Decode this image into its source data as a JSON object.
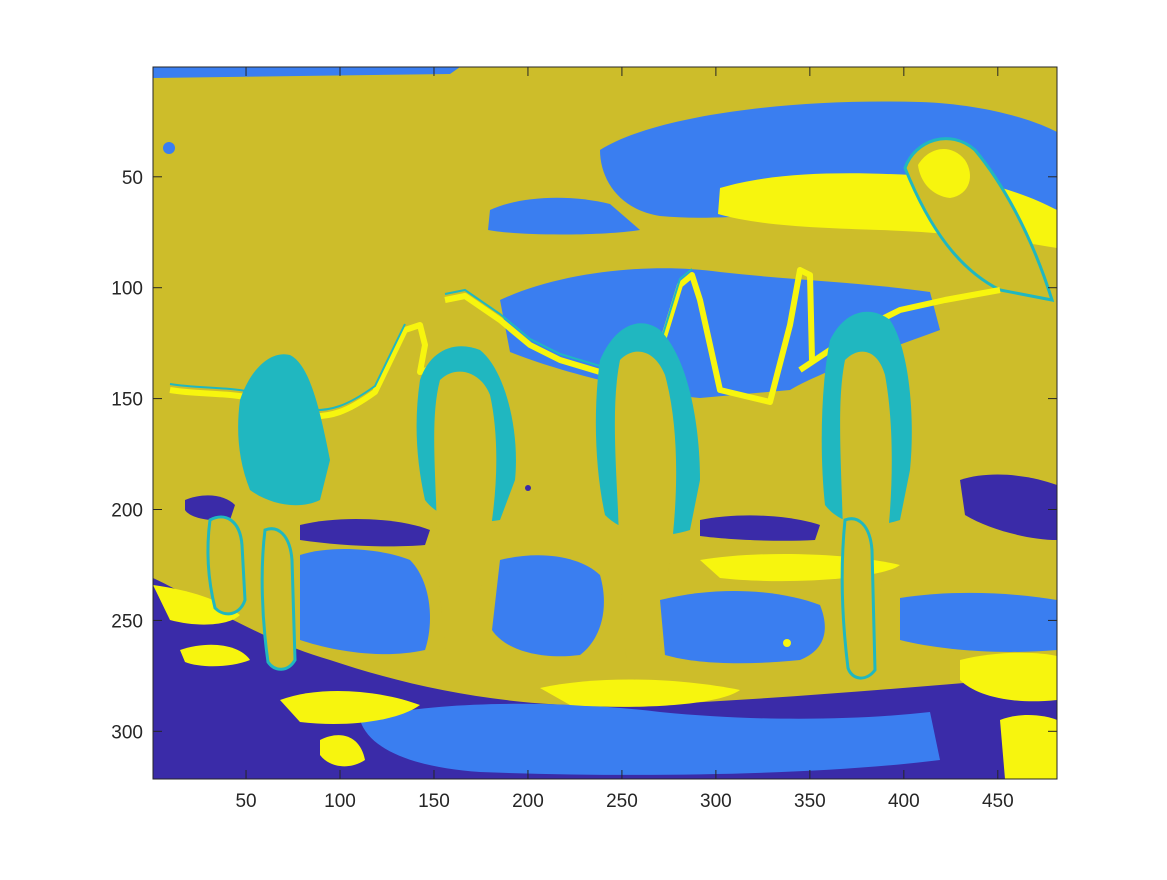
{
  "chart_data": {
    "type": "heatmap",
    "title": "",
    "xlabel": "",
    "ylabel": "",
    "x_range": [
      0.5,
      481.5
    ],
    "y_range": [
      0.5,
      321.5
    ],
    "y_direction": "reversed",
    "x_ticks": [
      50,
      100,
      150,
      200,
      250,
      300,
      350,
      400,
      450
    ],
    "y_ticks": [
      50,
      100,
      150,
      200,
      250,
      300
    ],
    "grid": false,
    "colorbar": false,
    "colormap": "parula",
    "class_colors": [
      "#3a2ba8",
      "#3a7ef0",
      "#20b7c0",
      "#cdbd2a",
      "#f7f50e"
    ],
    "dominant_class": "#cdbd2a"
  }
}
